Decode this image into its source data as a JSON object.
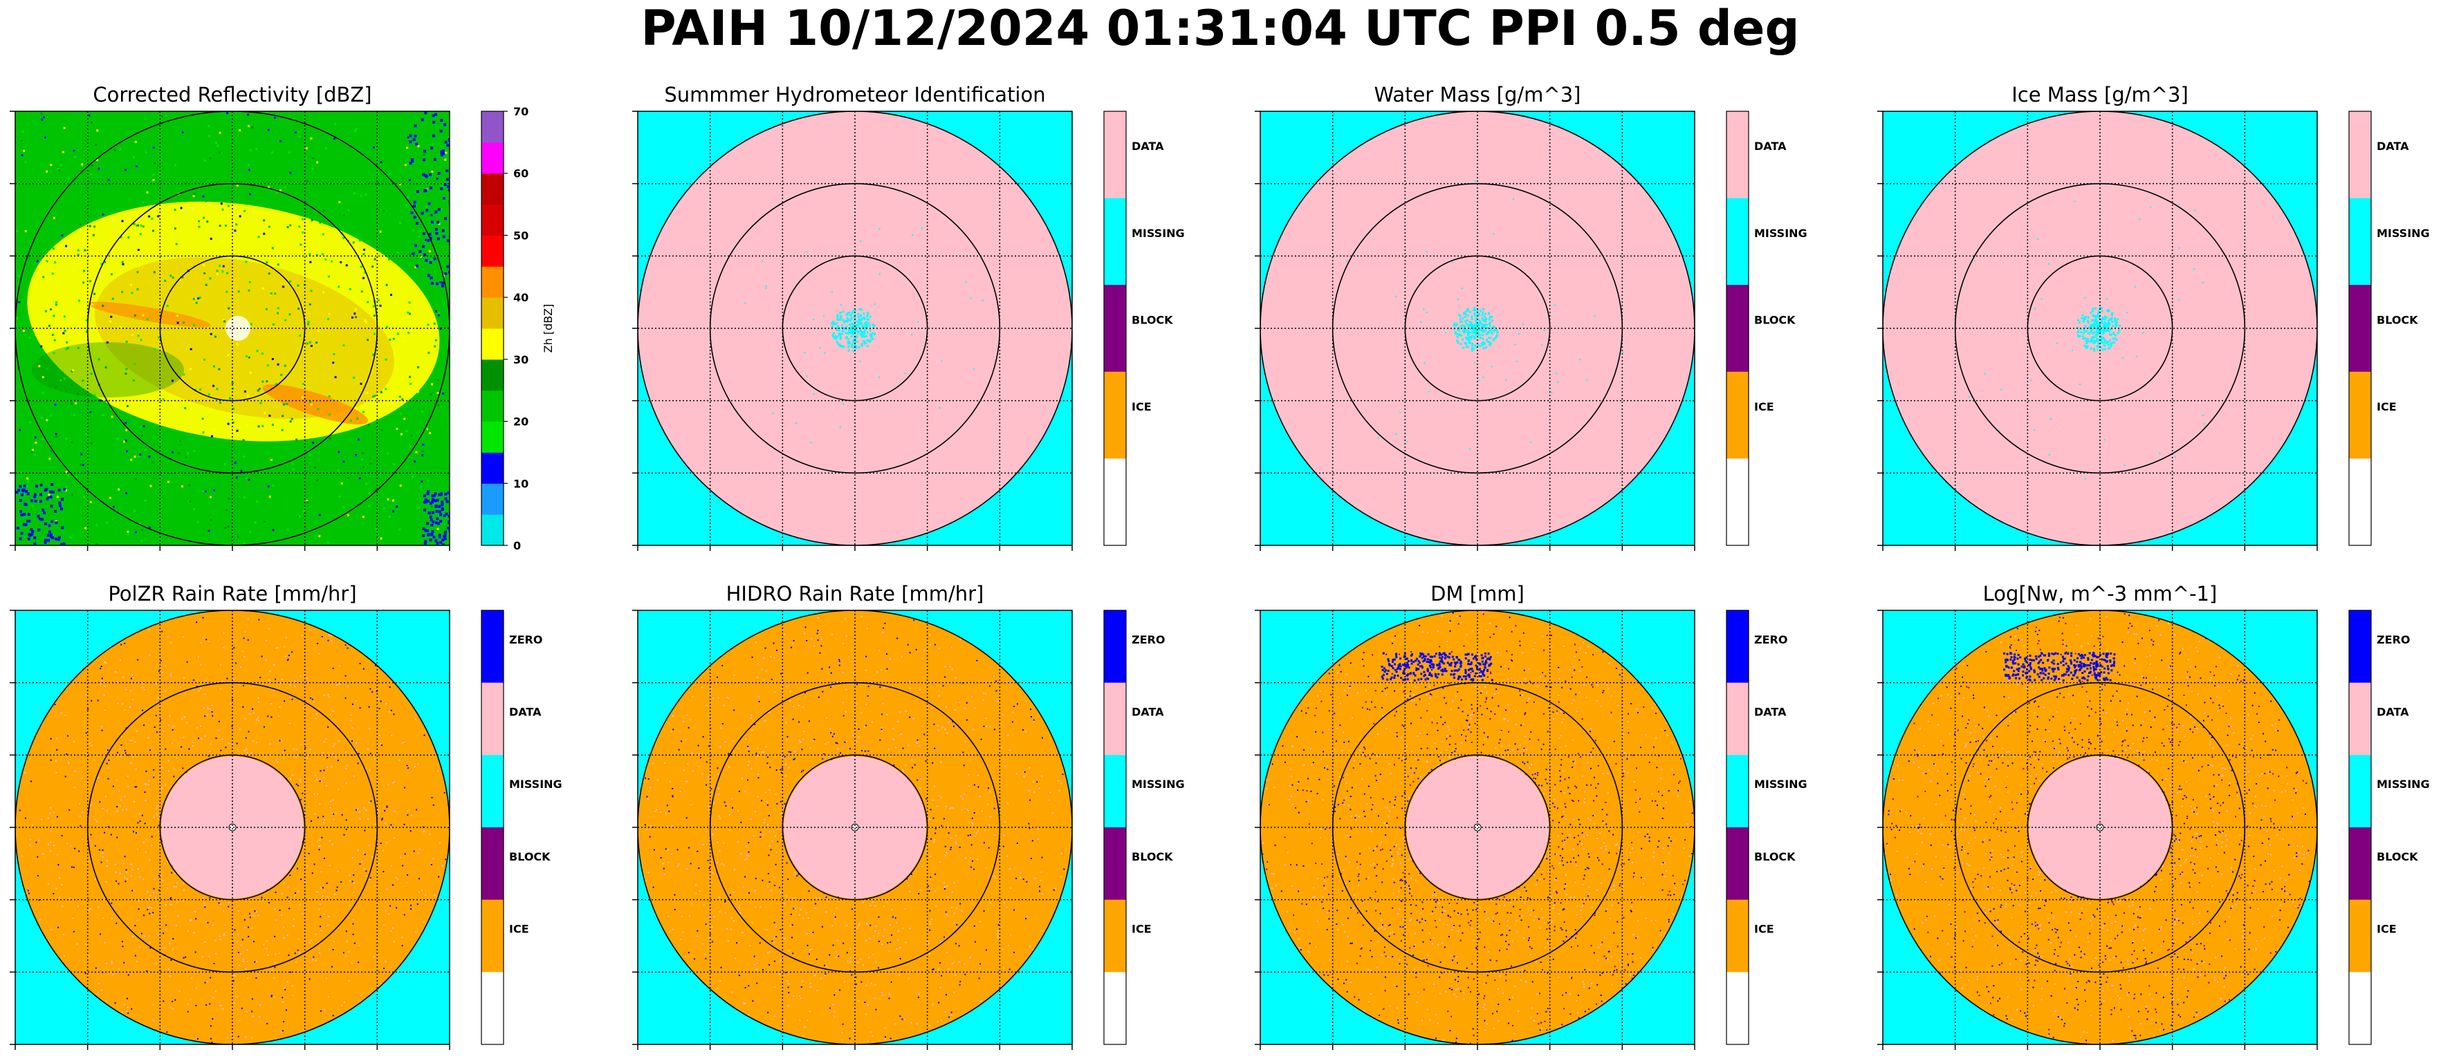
{
  "figure": {
    "title": "PAIH 10/12/2024 01:31:04 UTC PPI 0.5 deg"
  },
  "colors": {
    "background_cyan": "#00ffff",
    "data_pink": "#ffc0cb",
    "missing_cyan": "#00ffff",
    "block_purple": "#800080",
    "ice_orange": "#ffa500",
    "zero_blue": "#0000ff",
    "blank_white": "#ffffff",
    "reflectivity_scale": [
      "#00e8e8",
      "#1a9cff",
      "#0000ff",
      "#00e600",
      "#00c400",
      "#009000",
      "#ffff00",
      "#e6be00",
      "#ff9000",
      "#ff0000",
      "#d60000",
      "#c00000",
      "#ff00ff",
      "#9055c8"
    ]
  },
  "chart_data": [
    {
      "type": "heatmap",
      "title": "Corrected Reflectivity [dBZ]",
      "colorbar": {
        "label": "Zh [dBZ]",
        "ticks": [
          0,
          10,
          20,
          30,
          40,
          50,
          60,
          70
        ],
        "range": [
          0,
          70
        ]
      },
      "range_rings": 3,
      "grid": "dotted",
      "description_values": {
        "dominant_bins_dbz": [
          18,
          25,
          32
        ],
        "max_core_dbz": 45
      }
    },
    {
      "type": "heatmap",
      "title": "Summmer Hydrometeor Identification",
      "colorbar": {
        "categories": [
          "DATA",
          "MISSING",
          "BLOCK",
          "ICE"
        ]
      },
      "fill_inside": "DATA",
      "fill_outside": "MISSING",
      "range_rings": 3,
      "grid": "dotted"
    },
    {
      "type": "heatmap",
      "title": "Water Mass [g/m^3]",
      "colorbar": {
        "categories": [
          "DATA",
          "MISSING",
          "BLOCK",
          "ICE"
        ]
      },
      "fill_inside": "DATA",
      "fill_outside": "MISSING",
      "range_rings": 3,
      "grid": "dotted"
    },
    {
      "type": "heatmap",
      "title": "Ice Mass [g/m^3]",
      "colorbar": {
        "categories": [
          "DATA",
          "MISSING",
          "BLOCK",
          "ICE"
        ]
      },
      "fill_inside": "DATA",
      "fill_outside": "MISSING",
      "range_rings": 3,
      "grid": "dotted"
    },
    {
      "type": "heatmap",
      "title": "PolZR Rain Rate [mm/hr]",
      "colorbar": {
        "categories": [
          "ZERO",
          "DATA",
          "MISSING",
          "BLOCK",
          "ICE"
        ]
      },
      "fill_inside": "ICE",
      "fill_outside": "MISSING",
      "inner_fill": "DATA",
      "range_rings": 3,
      "grid": "dotted"
    },
    {
      "type": "heatmap",
      "title": "HIDRO Rain Rate [mm/hr]",
      "colorbar": {
        "categories": [
          "ZERO",
          "DATA",
          "MISSING",
          "BLOCK",
          "ICE"
        ]
      },
      "fill_inside": "ICE",
      "fill_outside": "MISSING",
      "inner_fill": "DATA",
      "range_rings": 3,
      "grid": "dotted"
    },
    {
      "type": "heatmap",
      "title": "DM [mm]",
      "colorbar": {
        "categories": [
          "ZERO",
          "DATA",
          "MISSING",
          "BLOCK",
          "ICE"
        ]
      },
      "fill_inside": "ICE",
      "fill_outside": "MISSING",
      "inner_fill": "DATA",
      "range_rings": 3,
      "grid": "dotted"
    },
    {
      "type": "heatmap",
      "title": "Log[Nw, m^-3 mm^-1]",
      "colorbar": {
        "categories": [
          "ZERO",
          "DATA",
          "MISSING",
          "BLOCK",
          "ICE"
        ]
      },
      "fill_inside": "ICE",
      "fill_outside": "MISSING",
      "inner_fill": "DATA",
      "range_rings": 3,
      "grid": "dotted"
    }
  ]
}
